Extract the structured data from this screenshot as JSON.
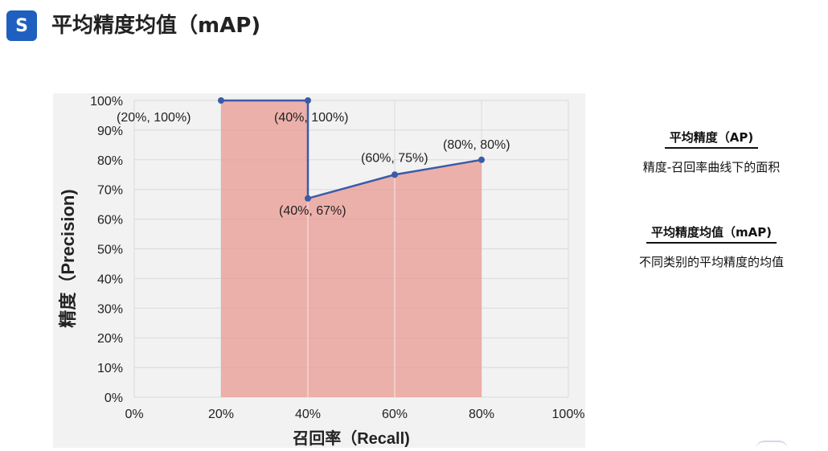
{
  "header": {
    "logo_glyph": "S",
    "title": "平均精度均值（mAP)"
  },
  "side_panel": {
    "ap": {
      "heading": "平均精度（AP)",
      "description": "精度-召回率曲线下的面积"
    },
    "map": {
      "heading": "平均精度均值（mAP)",
      "description": "不同类别的平均精度的均值"
    }
  },
  "chart_data": {
    "type": "line",
    "xlabel": "召回率（Recall)",
    "ylabel": "精度（Precision)",
    "xlim": [
      0,
      100
    ],
    "ylim": [
      0,
      100
    ],
    "x_ticks": [
      "0%",
      "20%",
      "40%",
      "60%",
      "80%",
      "100%"
    ],
    "y_ticks": [
      "0%",
      "10%",
      "20%",
      "30%",
      "40%",
      "50%",
      "60%",
      "70%",
      "80%",
      "90%",
      "100%"
    ],
    "grid": true,
    "series": [
      {
        "x": [
          20,
          40,
          40,
          60,
          80
        ],
        "y": [
          100,
          100,
          67,
          75,
          80
        ]
      }
    ],
    "points": [
      {
        "x": 20,
        "y": 100,
        "label": "(20%, 100%)"
      },
      {
        "x": 40,
        "y": 100,
        "label": "(40%, 100%)"
      },
      {
        "x": 40,
        "y": 67,
        "label": "(40%, 67%)"
      },
      {
        "x": 60,
        "y": 75,
        "label": "(60%, 75%)"
      },
      {
        "x": 80,
        "y": 80,
        "label": "(80%, 80%)"
      }
    ],
    "colors": {
      "line": "#3a5ba8",
      "fill": "#e99a92",
      "plot_bg": "#f2f2f2",
      "grid": "#d9d9d9"
    }
  }
}
